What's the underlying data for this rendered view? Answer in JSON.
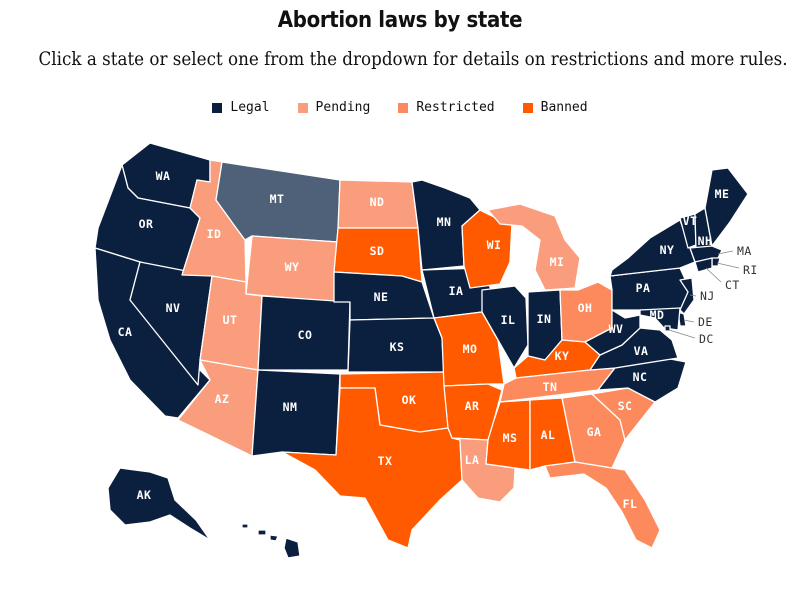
{
  "header": {
    "title": "Abortion laws by state",
    "subtitle": "Click a state or select one from the dropdown for details on restrictions and more rules."
  },
  "legend": [
    {
      "key": "legal",
      "label": "Legal",
      "color": "#0b1f3f"
    },
    {
      "key": "pending",
      "label": "Pending",
      "color": "#f99d7c"
    },
    {
      "key": "restricted",
      "label": "Restricted",
      "color": "#fc8a5c"
    },
    {
      "key": "banned",
      "label": "Banned",
      "color": "#ff5a00"
    }
  ],
  "colors": {
    "legal": "#0b1f3f",
    "pending": "#f99d7c",
    "restricted": "#fc8a5c",
    "banned": "#ff5a00",
    "undetermined": "#4f6178"
  },
  "states": {
    "WA": {
      "abbr": "WA",
      "status": "legal"
    },
    "OR": {
      "abbr": "OR",
      "status": "legal"
    },
    "CA": {
      "abbr": "CA",
      "status": "legal"
    },
    "NV": {
      "abbr": "NV",
      "status": "legal"
    },
    "ID": {
      "abbr": "ID",
      "status": "pending"
    },
    "MT": {
      "abbr": "MT",
      "status": "undetermined"
    },
    "WY": {
      "abbr": "WY",
      "status": "pending"
    },
    "UT": {
      "abbr": "UT",
      "status": "pending"
    },
    "AZ": {
      "abbr": "AZ",
      "status": "pending"
    },
    "CO": {
      "abbr": "CO",
      "status": "legal"
    },
    "NM": {
      "abbr": "NM",
      "status": "legal"
    },
    "ND": {
      "abbr": "ND",
      "status": "pending"
    },
    "SD": {
      "abbr": "SD",
      "status": "banned"
    },
    "NE": {
      "abbr": "NE",
      "status": "legal"
    },
    "KS": {
      "abbr": "KS",
      "status": "legal"
    },
    "OK": {
      "abbr": "OK",
      "status": "banned"
    },
    "TX": {
      "abbr": "TX",
      "status": "banned"
    },
    "MN": {
      "abbr": "MN",
      "status": "legal"
    },
    "IA": {
      "abbr": "IA",
      "status": "legal"
    },
    "MO": {
      "abbr": "MO",
      "status": "banned"
    },
    "AR": {
      "abbr": "AR",
      "status": "banned"
    },
    "LA": {
      "abbr": "LA",
      "status": "pending"
    },
    "WI": {
      "abbr": "WI",
      "status": "banned"
    },
    "IL": {
      "abbr": "IL",
      "status": "legal"
    },
    "MI": {
      "abbr": "MI",
      "status": "pending"
    },
    "IN": {
      "abbr": "IN",
      "status": "legal"
    },
    "OH": {
      "abbr": "OH",
      "status": "restricted"
    },
    "KY": {
      "abbr": "KY",
      "status": "banned"
    },
    "TN": {
      "abbr": "TN",
      "status": "restricted"
    },
    "MS": {
      "abbr": "MS",
      "status": "banned"
    },
    "AL": {
      "abbr": "AL",
      "status": "banned"
    },
    "GA": {
      "abbr": "GA",
      "status": "restricted"
    },
    "FL": {
      "abbr": "FL",
      "status": "restricted"
    },
    "SC": {
      "abbr": "SC",
      "status": "restricted"
    },
    "NC": {
      "abbr": "NC",
      "status": "legal"
    },
    "VA": {
      "abbr": "VA",
      "status": "legal"
    },
    "WV": {
      "abbr": "WV",
      "status": "legal"
    },
    "PA": {
      "abbr": "PA",
      "status": "legal"
    },
    "NY": {
      "abbr": "NY",
      "status": "legal"
    },
    "VT": {
      "abbr": "VT",
      "status": "legal"
    },
    "NH": {
      "abbr": "NH",
      "status": "legal"
    },
    "ME": {
      "abbr": "ME",
      "status": "legal"
    },
    "MA": {
      "abbr": "MA",
      "status": "legal"
    },
    "RI": {
      "abbr": "RI",
      "status": "legal"
    },
    "CT": {
      "abbr": "CT",
      "status": "legal"
    },
    "NJ": {
      "abbr": "NJ",
      "status": "legal"
    },
    "DE": {
      "abbr": "DE",
      "status": "legal"
    },
    "MD": {
      "abbr": "MD",
      "status": "legal"
    },
    "DC": {
      "abbr": "DC",
      "status": "legal"
    },
    "AK": {
      "abbr": "AK",
      "status": "legal"
    },
    "HI": {
      "abbr": "HI",
      "status": "legal"
    }
  }
}
